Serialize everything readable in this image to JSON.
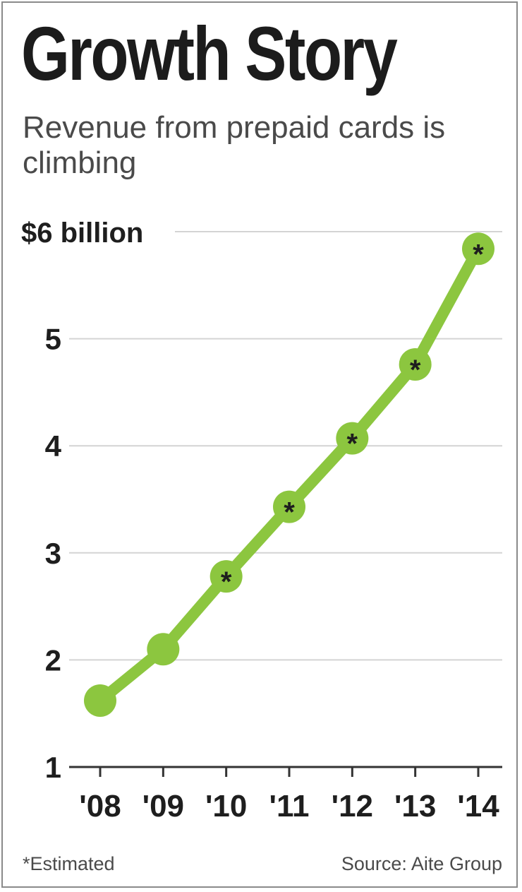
{
  "title": "Growth Story",
  "subtitle": "Revenue from prepaid cards is climbing",
  "footnote": "*Estimated",
  "source": "Source: Aite Group",
  "colors": {
    "line": "#8cc63f",
    "grid": "#d4d4d4",
    "axis": "#333333",
    "text": "#1e1e1e"
  },
  "chart_data": {
    "type": "line",
    "categories": [
      "'08",
      "'09",
      "'10",
      "'11",
      "'12",
      "'13",
      "'14"
    ],
    "ylabel": "",
    "ylim": [
      1,
      6
    ],
    "y_ticks": [
      {
        "value": 1,
        "label": "1"
      },
      {
        "value": 2,
        "label": "2"
      },
      {
        "value": 3,
        "label": "3"
      },
      {
        "value": 4,
        "label": "4"
      },
      {
        "value": 5,
        "label": "5"
      },
      {
        "value": 6,
        "label": "$6 billion"
      }
    ],
    "grid": true,
    "series": [
      {
        "values": [
          1.62,
          2.1,
          2.78,
          3.43,
          4.07,
          4.76,
          5.84
        ],
        "estimated": [
          false,
          false,
          true,
          true,
          true,
          true,
          true
        ],
        "estimate_marker": "*"
      }
    ]
  }
}
